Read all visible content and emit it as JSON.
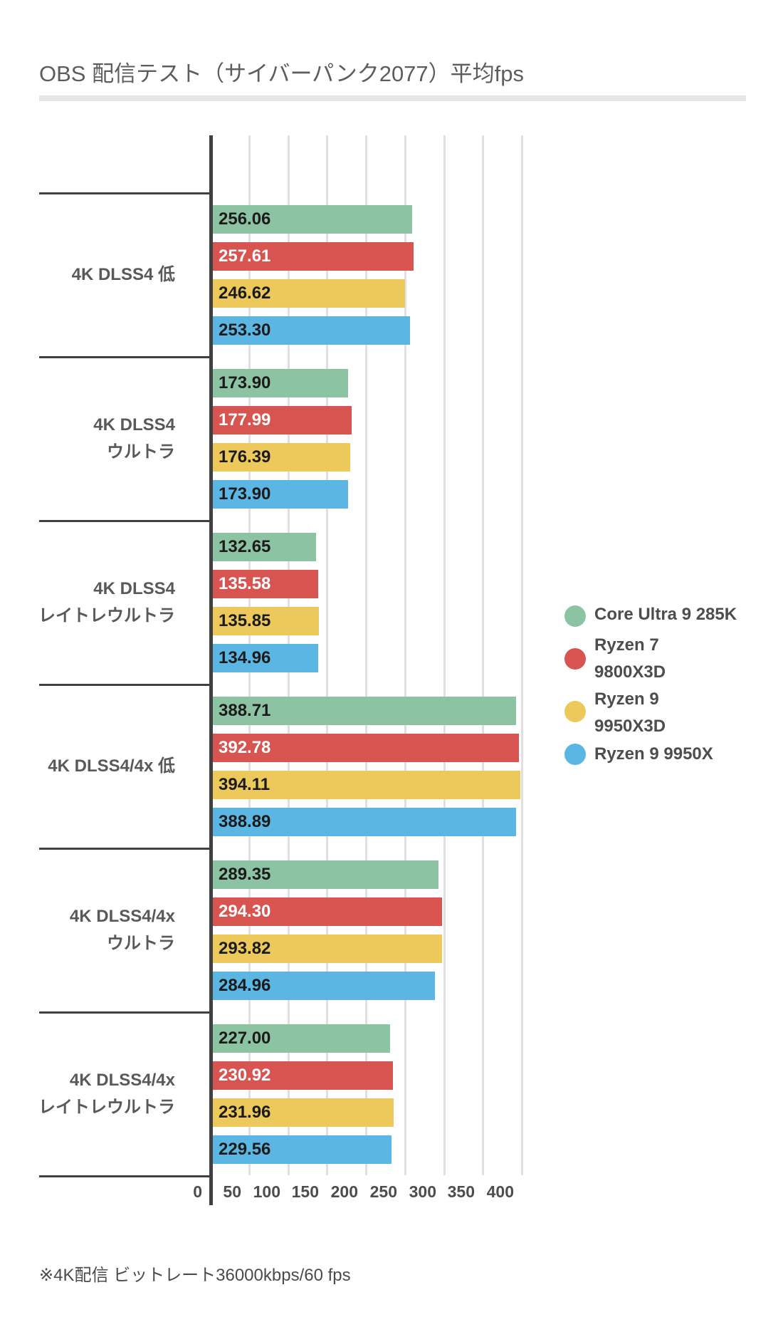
{
  "title": "OBS 配信テスト（サイバーパンク2077）平均fps",
  "footnote": "※4K配信 ビットレート36000kbps/60 fps",
  "chart_data": {
    "type": "bar",
    "orientation": "horizontal",
    "title": "OBS 配信テスト（サイバーパンク2077）平均fps",
    "xlabel": "平均fps",
    "grid": true,
    "legend_position": "right",
    "axis": {
      "min": 0,
      "max": 400,
      "ticks": [
        0,
        50,
        100,
        150,
        200,
        250,
        300,
        350,
        400
      ],
      "tick_labels": [
        "0",
        "50",
        "100",
        "150",
        "200",
        "250",
        "300",
        "350",
        "400"
      ]
    },
    "categories": [
      "4K DLSS4 低",
      "4K DLSS4 ウルトラ",
      "4K DLSS4 レイトレウルトラ",
      "4K DLSS4/4x 低",
      "4K DLSS4/4x ウルトラ",
      "4K DLSS4/4x レイトレウルトラ"
    ],
    "category_lines": [
      [
        "4K DLSS4 低"
      ],
      [
        "4K DLSS4",
        "ウルトラ"
      ],
      [
        "4K DLSS4",
        "レイトレウルトラ"
      ],
      [
        "4K DLSS4/4x 低"
      ],
      [
        "4K DLSS4/4x",
        "ウルトラ"
      ],
      [
        "4K DLSS4/4x",
        "レイトレウルトラ"
      ]
    ],
    "series": [
      {
        "id": "core-ultra-9-285k",
        "name": "Core Ultra 9 285K",
        "name_lines": [
          "Core Ultra 9 285K"
        ],
        "color": "#8CC4A3",
        "value_label_color": "#1b1b1b",
        "values": [
          256.06,
          173.9,
          132.65,
          388.71,
          289.35,
          227.0
        ],
        "value_labels": [
          "256.06",
          "173.90",
          "132.65",
          "388.71",
          "289.35",
          "227.00"
        ]
      },
      {
        "id": "ryzen-7-9800x3d",
        "name": "Ryzen 7 9800X3D",
        "name_lines": [
          "Ryzen 7",
          "9800X3D"
        ],
        "color": "#D85450",
        "value_label_color": "#ffffff",
        "values": [
          257.61,
          177.99,
          135.58,
          392.78,
          294.3,
          230.92
        ],
        "value_labels": [
          "257.61",
          "177.99",
          "135.58",
          "392.78",
          "294.30",
          "230.92"
        ]
      },
      {
        "id": "ryzen-9-9950x3d",
        "name": "Ryzen 9 9950X3D",
        "name_lines": [
          "Ryzen 9",
          "9950X3D"
        ],
        "color": "#ECC95A",
        "value_label_color": "#1b1b1b",
        "values": [
          246.62,
          176.39,
          135.85,
          394.11,
          293.82,
          231.96
        ],
        "value_labels": [
          "246.62",
          "176.39",
          "135.85",
          "394.11",
          "293.82",
          "231.96"
        ]
      },
      {
        "id": "ryzen-9-9950x",
        "name": "Ryzen 9 9950X",
        "name_lines": [
          "Ryzen 9 9950X"
        ],
        "color": "#5CB6E3",
        "value_label_color": "#1b1b1b",
        "values": [
          253.3,
          173.9,
          134.96,
          388.89,
          284.96,
          229.56
        ],
        "value_labels": [
          "253.30",
          "173.90",
          "134.96",
          "388.89",
          "284.96",
          "229.56"
        ]
      }
    ]
  }
}
